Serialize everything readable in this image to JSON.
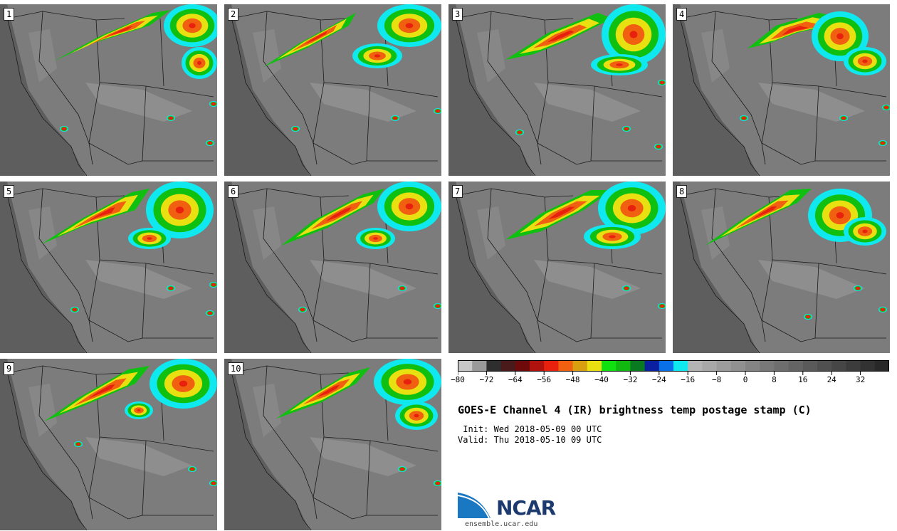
{
  "panels": [
    {
      "label": "1"
    },
    {
      "label": "2"
    },
    {
      "label": "3"
    },
    {
      "label": "4"
    },
    {
      "label": "5"
    },
    {
      "label": "6"
    },
    {
      "label": "7"
    },
    {
      "label": "8"
    },
    {
      "label": "9"
    },
    {
      "label": "10"
    }
  ],
  "colorbar": {
    "tick_labels": [
      "−80",
      "−72",
      "−64",
      "−56",
      "−48",
      "−40",
      "−32",
      "−24",
      "−16",
      "−8",
      "0",
      "8",
      "16",
      "24",
      "32"
    ],
    "min": -80,
    "max": 40,
    "step": 4,
    "colors": [
      "#c8c8c8",
      "#9a9a9a",
      "#2e2e2e",
      "#4a1a1a",
      "#6e0a0a",
      "#b0120e",
      "#e8200e",
      "#f06010",
      "#d8a010",
      "#e8e010",
      "#10e010",
      "#10b810",
      "#0a7a20",
      "#0a20a0",
      "#0a70e8",
      "#10e8f0",
      "#b4b4b4",
      "#a8a8a8",
      "#9c9c9c",
      "#909090",
      "#848484",
      "#787878",
      "#6e6e6e",
      "#646464",
      "#5a5a5a",
      "#505050",
      "#464646",
      "#3c3c3c",
      "#323232",
      "#282828"
    ]
  },
  "title": "GOES-E Channel 4 (IR) brightness temp postage stamp (C)",
  "init_line": " Init: Wed 2018-05-09 00 UTC",
  "valid_line": "Valid: Thu 2018-05-10 09 UTC",
  "logo": {
    "text": "NCAR",
    "url": "ensemble.ucar.edu"
  }
}
